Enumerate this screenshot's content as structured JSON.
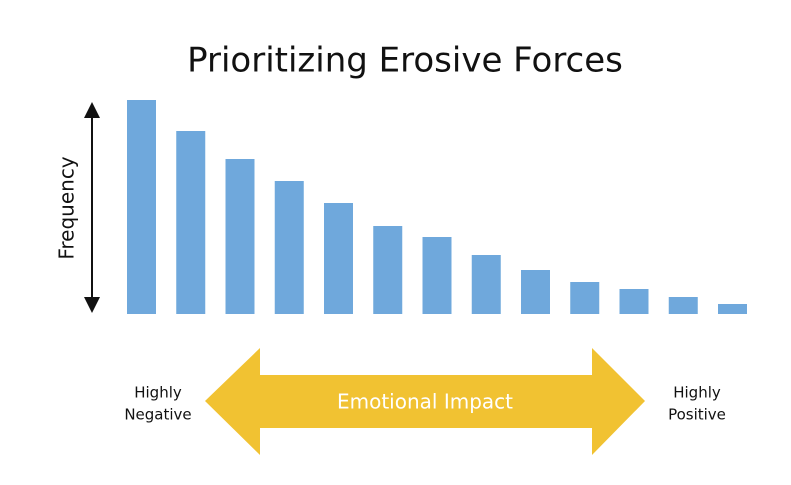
{
  "chart_data": {
    "type": "bar",
    "title": "Prioritizing Erosive Forces",
    "y_label": "Frequency",
    "x_label": "Emotional Impact",
    "x_left_label": [
      "Highly",
      "Negative"
    ],
    "x_right_label": [
      "Highly",
      "Positive"
    ],
    "values": [
      214,
      183,
      155,
      133,
      111,
      88,
      77,
      59,
      44,
      32,
      25,
      17,
      10
    ],
    "color": "#6fa8dc",
    "arrow_color": "#f1c232"
  }
}
